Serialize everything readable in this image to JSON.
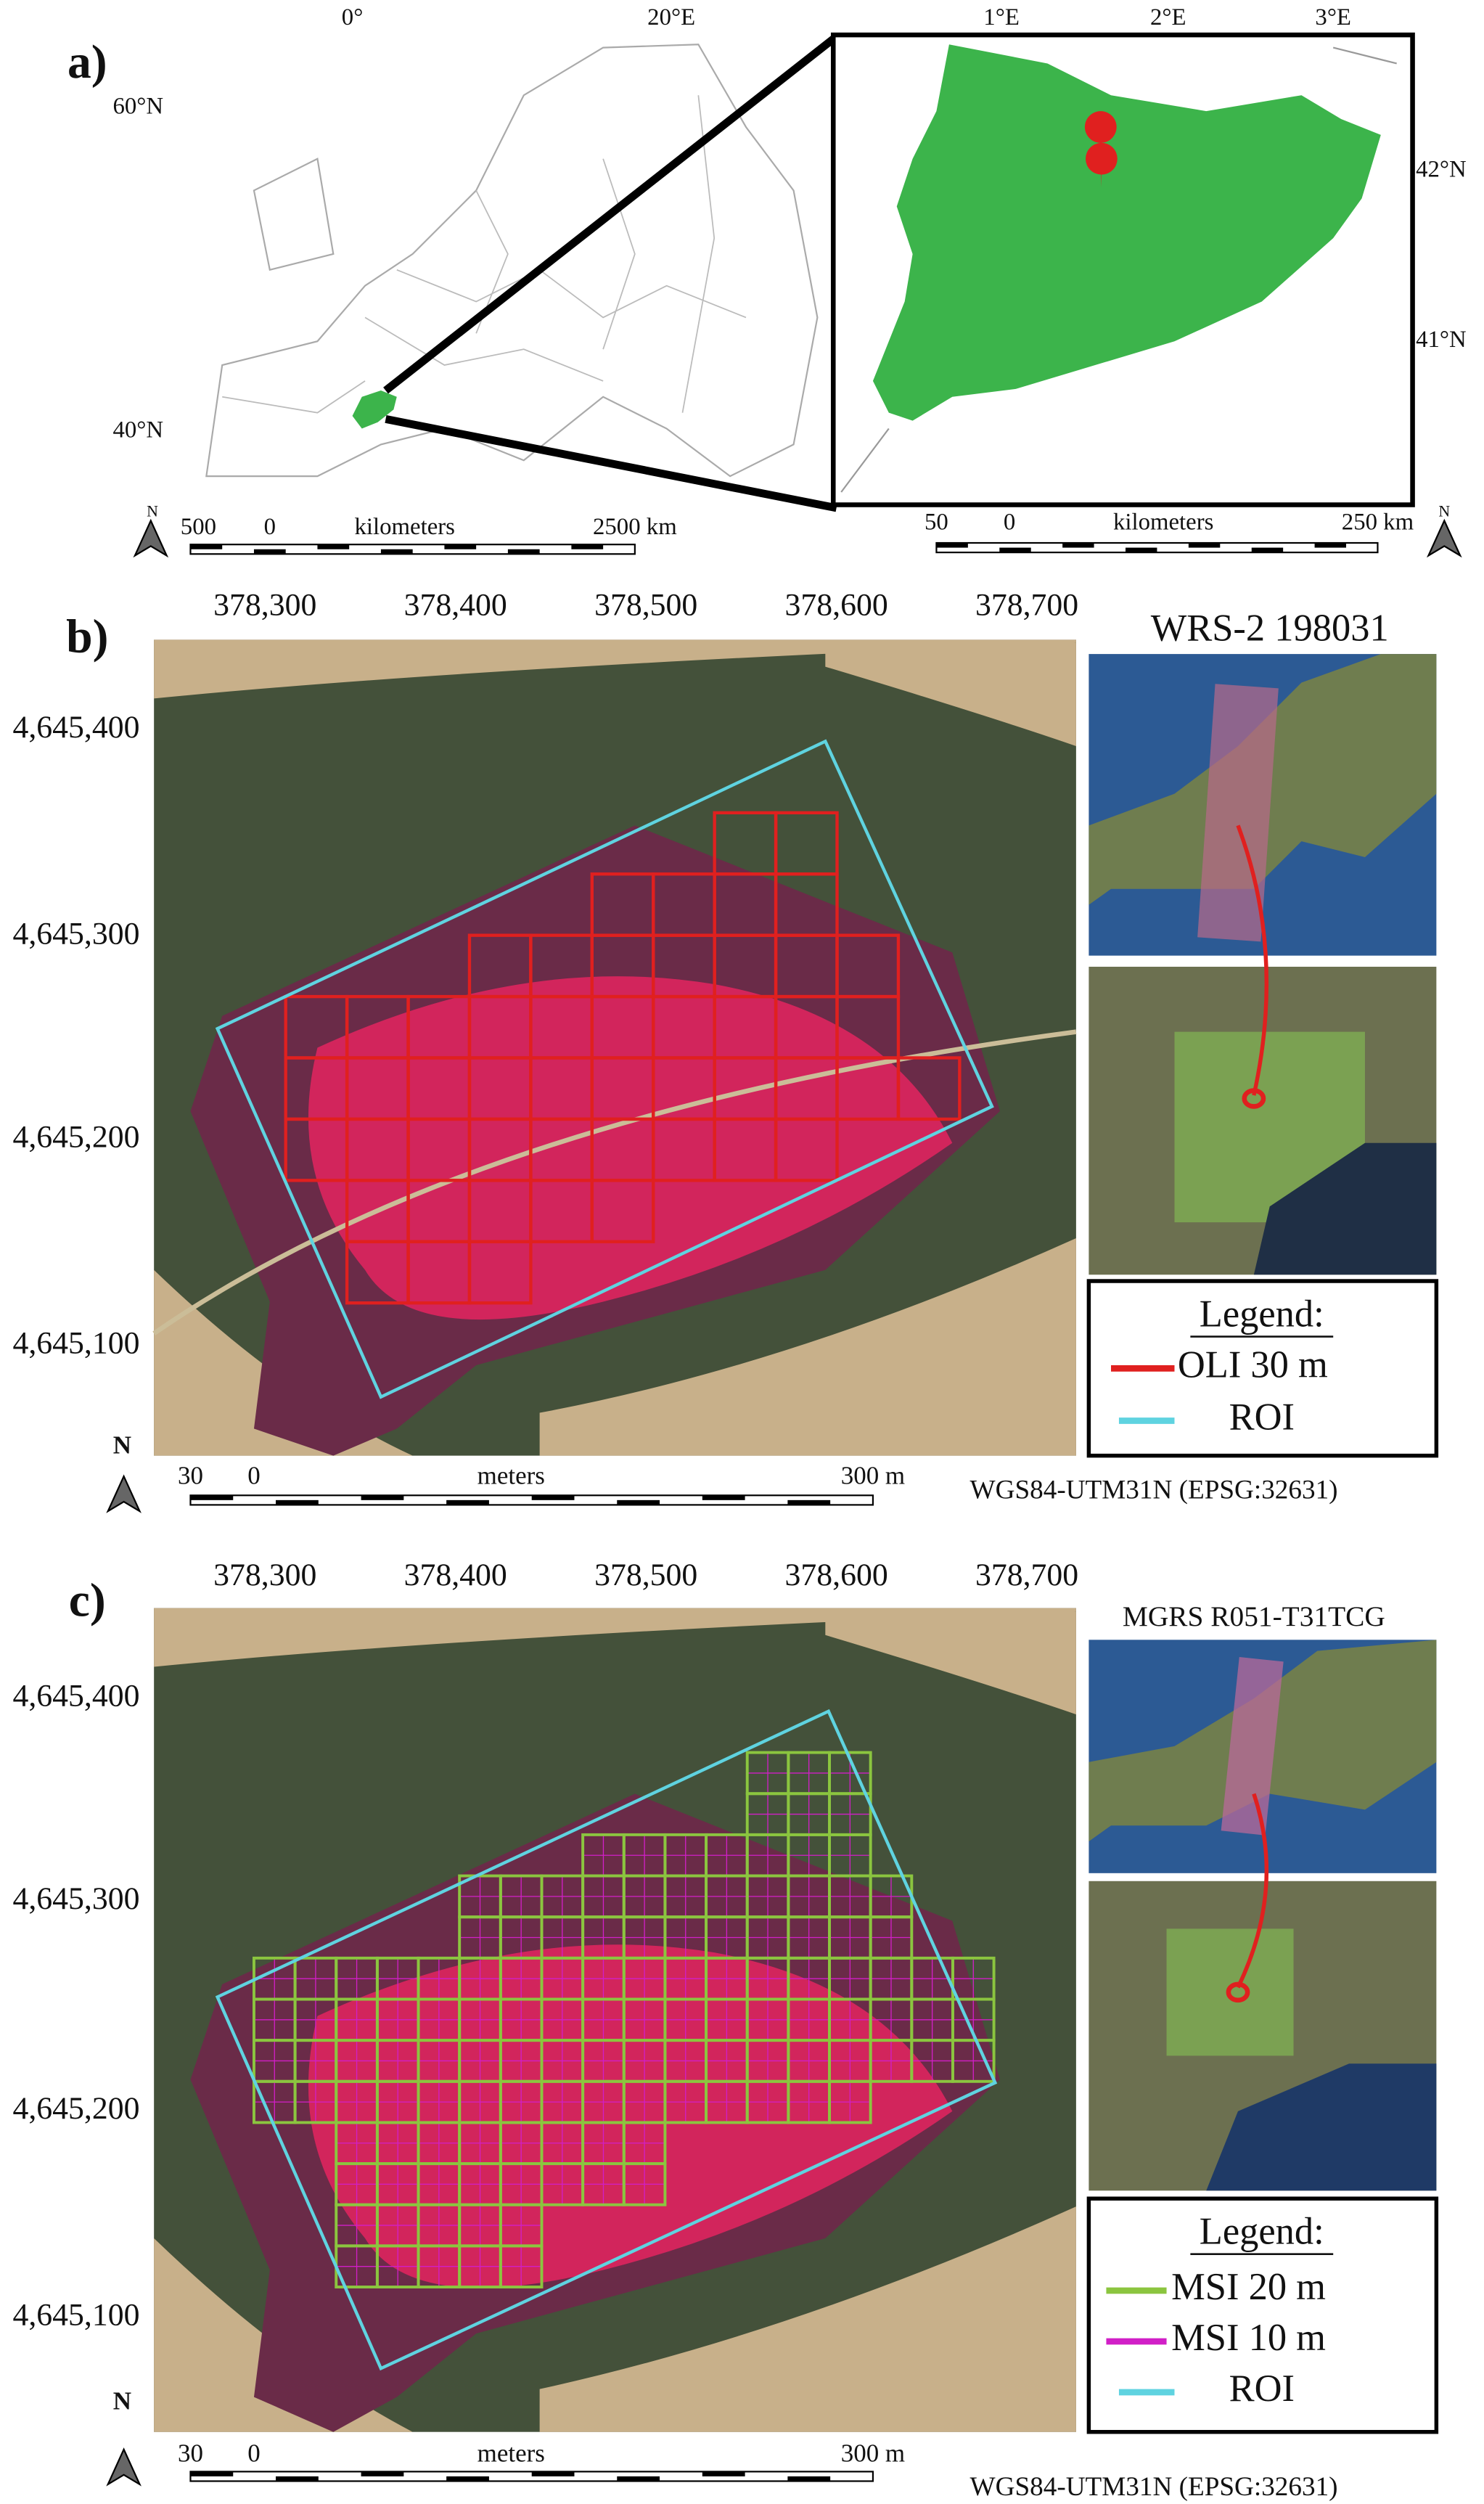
{
  "panels": [
    {
      "label": "a)",
      "map": {
        "x_ticks": [
          "0°",
          "20°E"
        ],
        "y_ticks": [
          "60°N",
          "40°N"
        ],
        "north": "N",
        "scale": [
          "500",
          "0",
          "kilometers",
          "2500 km"
        ]
      },
      "inset": {
        "x_ticks": [
          "1°E",
          "2°E",
          "3°E"
        ],
        "y_ticks": [
          "42°N",
          "41°N"
        ],
        "north": "N",
        "scale": [
          "50",
          "0",
          "kilometers",
          "250 km"
        ]
      }
    },
    {
      "label": "b)",
      "x_ticks": [
        "378,300",
        "378,400",
        "378,500",
        "378,600",
        "378,700"
      ],
      "y_ticks": [
        "4,645,400",
        "4,645,300",
        "4,645,200",
        "4,645,100"
      ],
      "scene_title": "WRS-2 198031",
      "legend": {
        "title": "Legend:",
        "items": [
          "OLI 30 m",
          "ROI"
        ]
      },
      "north": "N",
      "scale": [
        "30",
        "0",
        "meters",
        "300 m"
      ],
      "crs": "WGS84-UTM31N (EPSG:32631)"
    },
    {
      "label": "c)",
      "x_ticks": [
        "378,300",
        "378,400",
        "378,500",
        "378,600",
        "378,700"
      ],
      "y_ticks": [
        "4,645,400",
        "4,645,300",
        "4,645,200",
        "4,645,100"
      ],
      "scene_title": "MGRS R051-T31TCG",
      "legend": {
        "title": "Legend:",
        "items": [
          "MSI 20 m",
          "MSI 10 m",
          "ROI"
        ]
      },
      "north": "N",
      "scale": [
        "30",
        "0",
        "meters",
        "300 m"
      ],
      "crs": "WGS84-UTM31N (EPSG:32631)"
    }
  ]
}
